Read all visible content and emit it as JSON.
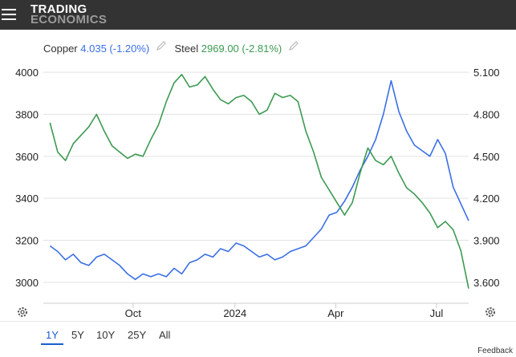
{
  "header": {
    "logo_line1": "TRADING",
    "logo_line2": "ECONOMICS",
    "menu_icon": "hamburger-menu-icon"
  },
  "legend": {
    "series1_name": "Copper",
    "series1_value": "4.035 (-1.20%)",
    "series2_name": "Steel",
    "series2_value": "2969.00 (-2.81%)",
    "edit_icon": "pencil-icon"
  },
  "range_selector": {
    "items": [
      "1Y",
      "5Y",
      "10Y",
      "25Y",
      "All"
    ],
    "active": "1Y"
  },
  "footer": {
    "feedback_label": "Feedback"
  },
  "settings_icon": "gear-icon",
  "colors": {
    "copper": "#3a6fe6",
    "steel": "#3c9a52",
    "axis_text": "#222222",
    "grid": "#e3e3e3"
  },
  "chart_data": {
    "type": "line",
    "x_axis": {
      "tick_labels": [
        "Oct",
        "2024",
        "Apr",
        "Jul"
      ]
    },
    "y_left": {
      "min": 2900,
      "max": 4100,
      "ticks": [
        3000,
        3200,
        3400,
        3600,
        3800,
        4000
      ],
      "series": "Steel"
    },
    "y_right": {
      "min": 3.45,
      "max": 5.25,
      "tick_labels": [
        "3.600",
        "3.900",
        "4.200",
        "4.500",
        "4.800",
        "5.100"
      ],
      "series": "Copper"
    },
    "grid": "horizontal",
    "series": [
      {
        "name": "Copper",
        "axis": "right",
        "x": [
          "2023-07-18",
          "2023-07-25",
          "2023-08-01",
          "2023-08-08",
          "2023-08-15",
          "2023-08-22",
          "2023-08-29",
          "2023-09-05",
          "2023-09-12",
          "2023-09-19",
          "2023-09-26",
          "2023-10-03",
          "2023-10-10",
          "2023-10-17",
          "2023-10-24",
          "2023-10-31",
          "2023-11-07",
          "2023-11-14",
          "2023-11-21",
          "2023-11-28",
          "2023-12-05",
          "2023-12-12",
          "2023-12-19",
          "2023-12-26",
          "2024-01-02",
          "2024-01-09",
          "2024-01-16",
          "2024-01-23",
          "2024-01-30",
          "2024-02-06",
          "2024-02-13",
          "2024-02-20",
          "2024-02-27",
          "2024-03-05",
          "2024-03-12",
          "2024-03-19",
          "2024-03-26",
          "2024-04-02",
          "2024-04-09",
          "2024-04-16",
          "2024-04-23",
          "2024-04-30",
          "2024-05-07",
          "2024-05-14",
          "2024-05-21",
          "2024-05-28",
          "2024-06-04",
          "2024-06-11",
          "2024-06-18",
          "2024-06-25",
          "2024-07-02",
          "2024-07-09",
          "2024-07-16",
          "2024-07-23",
          "2024-07-30"
        ],
        "values": [
          3.86,
          3.82,
          3.76,
          3.8,
          3.74,
          3.72,
          3.78,
          3.8,
          3.76,
          3.72,
          3.66,
          3.62,
          3.66,
          3.64,
          3.66,
          3.64,
          3.7,
          3.66,
          3.74,
          3.76,
          3.8,
          3.78,
          3.84,
          3.82,
          3.88,
          3.86,
          3.82,
          3.78,
          3.8,
          3.76,
          3.78,
          3.82,
          3.84,
          3.86,
          3.92,
          3.98,
          4.08,
          4.1,
          4.18,
          4.28,
          4.4,
          4.5,
          4.62,
          4.8,
          5.04,
          4.82,
          4.68,
          4.58,
          4.54,
          4.5,
          4.62,
          4.52,
          4.28,
          4.16,
          4.04
        ]
      },
      {
        "name": "Steel",
        "axis": "left",
        "x": [
          "2023-07-18",
          "2023-07-25",
          "2023-08-01",
          "2023-08-08",
          "2023-08-15",
          "2023-08-22",
          "2023-08-29",
          "2023-09-05",
          "2023-09-12",
          "2023-09-19",
          "2023-09-26",
          "2023-10-03",
          "2023-10-10",
          "2023-10-17",
          "2023-10-24",
          "2023-10-31",
          "2023-11-07",
          "2023-11-14",
          "2023-11-21",
          "2023-11-28",
          "2023-12-05",
          "2023-12-12",
          "2023-12-19",
          "2023-12-26",
          "2024-01-02",
          "2024-01-09",
          "2024-01-16",
          "2024-01-23",
          "2024-01-30",
          "2024-02-06",
          "2024-02-13",
          "2024-02-20",
          "2024-02-27",
          "2024-03-05",
          "2024-03-12",
          "2024-03-19",
          "2024-03-26",
          "2024-04-02",
          "2024-04-09",
          "2024-04-16",
          "2024-04-23",
          "2024-04-30",
          "2024-05-07",
          "2024-05-14",
          "2024-05-21",
          "2024-05-28",
          "2024-06-04",
          "2024-06-11",
          "2024-06-18",
          "2024-06-25",
          "2024-07-02",
          "2024-07-09",
          "2024-07-16",
          "2024-07-23",
          "2024-07-30"
        ],
        "values": [
          3760,
          3620,
          3580,
          3660,
          3700,
          3740,
          3800,
          3720,
          3650,
          3620,
          3590,
          3610,
          3600,
          3680,
          3750,
          3860,
          3950,
          3990,
          3930,
          3940,
          3980,
          3920,
          3870,
          3850,
          3880,
          3890,
          3860,
          3800,
          3820,
          3900,
          3880,
          3890,
          3860,
          3720,
          3620,
          3500,
          3440,
          3380,
          3320,
          3380,
          3520,
          3640,
          3580,
          3560,
          3600,
          3520,
          3450,
          3420,
          3380,
          3330,
          3260,
          3290,
          3250,
          3150,
          2970
        ]
      }
    ]
  }
}
